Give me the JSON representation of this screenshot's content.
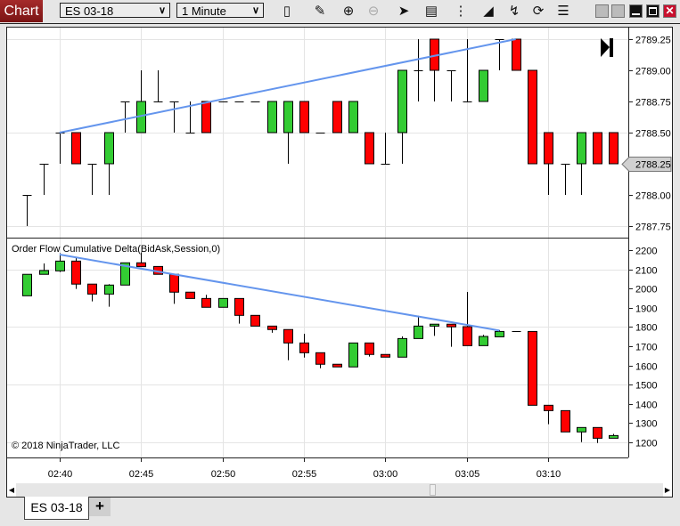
{
  "toolbar": {
    "chart_label": "Chart",
    "instrument": "ES 03-18",
    "interval": "1 Minute",
    "icons": [
      "bar-type-icon",
      "pencil-icon",
      "zoom-in-icon",
      "zoom-out-icon",
      "pointer-icon",
      "data-box-icon",
      "strategies-icon",
      "indicators-icon",
      "drawing-tools-icon",
      "reload-icon",
      "properties-icon"
    ],
    "window_buttons": [
      "tile-button",
      "tile-button-2",
      "minimize-button",
      "maximize-button",
      "close-button"
    ]
  },
  "colors": {
    "up": "#33cc33",
    "down": "#ff0000",
    "trendline": "#6495ed",
    "grid": "#e4e4e4",
    "chart_button": "#8b1a1a"
  },
  "price_panel": {
    "ticks": [
      "2789.25",
      "2789.00",
      "2788.75",
      "2788.50",
      "2788.25",
      "2788.00",
      "2787.75"
    ],
    "current_price": "2788.25"
  },
  "delta_panel": {
    "title": "Order Flow Cumulative Delta(BidAsk,Session,0)",
    "ticks": [
      "2200",
      "2100",
      "2000",
      "1900",
      "1800",
      "1700",
      "1600",
      "1500",
      "1400",
      "1300",
      "1200"
    ],
    "copyright": "© 2018 NinjaTrader, LLC"
  },
  "time_axis": {
    "labels": [
      "02:40",
      "02:45",
      "02:50",
      "02:55",
      "03:00",
      "03:05",
      "03:10"
    ]
  },
  "tabs": [
    {
      "label": "ES 03-18"
    },
    {
      "label": "+"
    }
  ],
  "chart_data": [
    {
      "type": "candlestick",
      "series": "ES 03-18 price",
      "x_start": "02:38",
      "x_interval": "1 minute",
      "ylim": [
        2787.75,
        2789.25
      ],
      "ohlc": [
        [
          2788.0,
          2788.0,
          2787.75,
          2788.0
        ],
        [
          2788.25,
          2788.25,
          2788.0,
          2788.25
        ],
        [
          2788.5,
          2788.5,
          2788.25,
          2788.5
        ],
        [
          2788.5,
          2788.5,
          2788.25,
          2788.25
        ],
        [
          2788.25,
          2788.25,
          2788.0,
          2788.25
        ],
        [
          2788.25,
          2788.5,
          2788.0,
          2788.5
        ],
        [
          2788.75,
          2788.75,
          2788.5,
          2788.75
        ],
        [
          2788.5,
          2789.0,
          2788.5,
          2788.75
        ],
        [
          2788.75,
          2789.0,
          2788.75,
          2788.75
        ],
        [
          2788.75,
          2788.75,
          2788.5,
          2788.75
        ],
        [
          2788.5,
          2788.75,
          2788.5,
          2788.5
        ],
        [
          2788.75,
          2788.75,
          2788.5,
          2788.5
        ],
        [
          2788.75,
          2788.75,
          2788.75,
          2788.75
        ],
        [
          2788.75,
          2788.75,
          2788.75,
          2788.75
        ],
        [
          2788.75,
          2788.75,
          2788.75,
          2788.75
        ],
        [
          2788.5,
          2788.75,
          2788.5,
          2788.75
        ],
        [
          2788.5,
          2788.75,
          2788.25,
          2788.75
        ],
        [
          2788.75,
          2788.75,
          2788.5,
          2788.5
        ],
        [
          2788.5,
          2788.5,
          2788.5,
          2788.5
        ],
        [
          2788.75,
          2788.75,
          2788.5,
          2788.5
        ],
        [
          2788.5,
          2788.75,
          2788.5,
          2788.75
        ],
        [
          2788.5,
          2788.5,
          2788.25,
          2788.25
        ],
        [
          2788.25,
          2788.5,
          2788.25,
          2788.25
        ],
        [
          2788.5,
          2789.0,
          2788.25,
          2789.0
        ],
        [
          2789.0,
          2789.25,
          2788.75,
          2789.0
        ],
        [
          2789.25,
          2789.25,
          2788.75,
          2789.0
        ],
        [
          2789.0,
          2789.0,
          2788.75,
          2789.0
        ],
        [
          2788.75,
          2789.25,
          2788.75,
          2788.75
        ],
        [
          2788.75,
          2789.0,
          2788.75,
          2789.0
        ],
        [
          2789.25,
          2789.25,
          2789.0,
          2789.25
        ],
        [
          2789.25,
          2789.25,
          2789.0,
          2789.0
        ],
        [
          2789.0,
          2789.0,
          2788.25,
          2788.25
        ],
        [
          2788.5,
          2788.5,
          2788.0,
          2788.25
        ],
        [
          2788.25,
          2788.25,
          2788.0,
          2788.25
        ],
        [
          2788.25,
          2788.5,
          2788.0,
          2788.5
        ],
        [
          2788.5,
          2788.5,
          2788.25,
          2788.25
        ],
        [
          2788.5,
          2788.5,
          2788.25,
          2788.25
        ]
      ],
      "trendline": {
        "from": [
          "02:40",
          2788.5
        ],
        "to": [
          "03:08",
          2789.25
        ]
      }
    },
    {
      "type": "candlestick",
      "series": "Order Flow Cumulative Delta",
      "x_start": "02:38",
      "x_interval": "1 minute",
      "ylim": [
        1200,
        2200
      ],
      "ohlc": [
        [
          1963,
          2075,
          1963,
          2075
        ],
        [
          2075,
          2132,
          2075,
          2095
        ],
        [
          2093,
          2185,
          2087,
          2144
        ],
        [
          2144,
          2166,
          1999,
          2024
        ],
        [
          2024,
          2024,
          1934,
          1972
        ],
        [
          1972,
          2024,
          1906,
          2019
        ],
        [
          2019,
          2135,
          2019,
          2135
        ],
        [
          2135,
          2190,
          2115,
          2115
        ],
        [
          2116,
          2116,
          2075,
          2075
        ],
        [
          2075,
          2075,
          1921,
          1982
        ],
        [
          1982,
          1982,
          1949,
          1949
        ],
        [
          1949,
          1968,
          1903,
          1903
        ],
        [
          1903,
          1949,
          1903,
          1949
        ],
        [
          1949,
          1949,
          1818,
          1861
        ],
        [
          1861,
          1861,
          1805,
          1805
        ],
        [
          1805,
          1805,
          1770,
          1787
        ],
        [
          1787,
          1787,
          1627,
          1717
        ],
        [
          1717,
          1765,
          1641,
          1666
        ],
        [
          1666,
          1666,
          1585,
          1606
        ],
        [
          1606,
          1606,
          1592,
          1592
        ],
        [
          1592,
          1717,
          1592,
          1717
        ],
        [
          1717,
          1717,
          1646,
          1657
        ],
        [
          1657,
          1657,
          1643,
          1643
        ],
        [
          1643,
          1751,
          1643,
          1740
        ],
        [
          1740,
          1859,
          1740,
          1805
        ],
        [
          1805,
          1815,
          1754,
          1815
        ],
        [
          1815,
          1815,
          1697,
          1801
        ],
        [
          1802,
          1983,
          1703,
          1703
        ],
        [
          1703,
          1759,
          1703,
          1751
        ],
        [
          1749,
          1784,
          1749,
          1777
        ],
        [
          1777,
          1777,
          1777,
          1777
        ],
        [
          1777,
          1777,
          1392,
          1392
        ],
        [
          1392,
          1392,
          1293,
          1364
        ],
        [
          1364,
          1364,
          1253,
          1253
        ],
        [
          1253,
          1276,
          1200,
          1276
        ],
        [
          1276,
          1276,
          1195,
          1220
        ],
        [
          1220,
          1243,
          1220,
          1234
        ]
      ],
      "trendline": {
        "from": [
          "02:40",
          2178
        ],
        "to": [
          "03:07",
          1782
        ]
      }
    }
  ]
}
